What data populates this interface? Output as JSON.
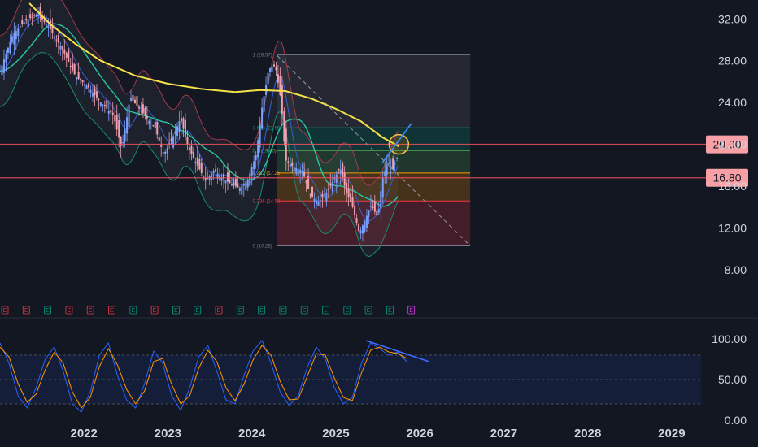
{
  "chart_data": [
    {
      "type": "candlestick",
      "panel": "price",
      "y_ticks": [
        "32.00",
        "28.00",
        "24.00",
        "20.00",
        "16.00",
        "12.00",
        "8.00"
      ],
      "y_tick_values": [
        32,
        28,
        24,
        20,
        16,
        12,
        8
      ],
      "x_ticks": [
        "2022",
        "2023",
        "2024",
        "2025",
        "2026",
        "2027",
        "2028",
        "2029"
      ],
      "ylim": [
        5.5,
        33.5
      ],
      "xlim": [
        2021.0,
        2029.35
      ],
      "price_lines": [
        {
          "label": "20.00",
          "value": 20.0,
          "color": "#f7525f"
        },
        {
          "label": "16.80",
          "value": 16.8,
          "color": "#f7525f"
        }
      ],
      "fib_levels": [
        {
          "label": "1 (28.57)",
          "value": 28.57,
          "color": "#787b86"
        },
        {
          "label": "0.618 (21.58)",
          "value": 21.58,
          "color": "#089981"
        },
        {
          "label": "0.5 (19.40)",
          "value": 19.4,
          "color": "#4caf50"
        },
        {
          "label": "0.382 (17.25)",
          "value": 17.25,
          "color": "#ff9800"
        },
        {
          "label": "0.236 (14.58)",
          "value": 14.58,
          "color": "#f23645"
        },
        {
          "label": "0 (10.28)",
          "value": 10.28,
          "color": "#787b86"
        }
      ],
      "fib_range_x": [
        2024.3,
        2026.6
      ],
      "closes": [
        {
          "t": 2021.0,
          "v": 27.0
        },
        {
          "t": 2021.15,
          "v": 30.5
        },
        {
          "t": 2021.3,
          "v": 31.8
        },
        {
          "t": 2021.45,
          "v": 32.5
        },
        {
          "t": 2021.6,
          "v": 31.0
        },
        {
          "t": 2021.75,
          "v": 29.0
        },
        {
          "t": 2021.9,
          "v": 26.5
        },
        {
          "t": 2022.05,
          "v": 25.5
        },
        {
          "t": 2022.2,
          "v": 24.0
        },
        {
          "t": 2022.35,
          "v": 22.8
        },
        {
          "t": 2022.45,
          "v": 19.5
        },
        {
          "t": 2022.55,
          "v": 24.5
        },
        {
          "t": 2022.65,
          "v": 23.5
        },
        {
          "t": 2022.75,
          "v": 22.5
        },
        {
          "t": 2022.85,
          "v": 21.5
        },
        {
          "t": 2022.95,
          "v": 19.0
        },
        {
          "t": 2023.05,
          "v": 20.5
        },
        {
          "t": 2023.15,
          "v": 22.5
        },
        {
          "t": 2023.25,
          "v": 19.5
        },
        {
          "t": 2023.35,
          "v": 18.0
        },
        {
          "t": 2023.45,
          "v": 16.5
        },
        {
          "t": 2023.55,
          "v": 17.5
        },
        {
          "t": 2023.65,
          "v": 16.8
        },
        {
          "t": 2023.75,
          "v": 16.2
        },
        {
          "t": 2023.85,
          "v": 15.8
        },
        {
          "t": 2023.95,
          "v": 16.6
        },
        {
          "t": 2024.05,
          "v": 19.0
        },
        {
          "t": 2024.12,
          "v": 23.5
        },
        {
          "t": 2024.2,
          "v": 27.2
        },
        {
          "t": 2024.28,
          "v": 27.5
        },
        {
          "t": 2024.35,
          "v": 24.0
        },
        {
          "t": 2024.4,
          "v": 18.5
        },
        {
          "t": 2024.5,
          "v": 17.8
        },
        {
          "t": 2024.6,
          "v": 17.5
        },
        {
          "t": 2024.7,
          "v": 15.0
        },
        {
          "t": 2024.8,
          "v": 14.5
        },
        {
          "t": 2024.9,
          "v": 15.5
        },
        {
          "t": 2025.0,
          "v": 17.0
        },
        {
          "t": 2025.05,
          "v": 17.8
        },
        {
          "t": 2025.12,
          "v": 15.5
        },
        {
          "t": 2025.2,
          "v": 14.0
        },
        {
          "t": 2025.28,
          "v": 11.5
        },
        {
          "t": 2025.35,
          "v": 12.8
        },
        {
          "t": 2025.42,
          "v": 14.2
        },
        {
          "t": 2025.5,
          "v": 13.0
        },
        {
          "t": 2025.55,
          "v": 16.5
        },
        {
          "t": 2025.62,
          "v": 18.3
        },
        {
          "t": 2025.68,
          "v": 17.6
        },
        {
          "t": 2025.75,
          "v": 19.2
        }
      ],
      "sma_yellow": [
        {
          "t": 2021.35,
          "v": 33.5
        },
        {
          "t": 2021.6,
          "v": 31.5
        },
        {
          "t": 2021.9,
          "v": 29.6
        },
        {
          "t": 2022.2,
          "v": 28.0
        },
        {
          "t": 2022.6,
          "v": 26.6
        },
        {
          "t": 2023.0,
          "v": 25.8
        },
        {
          "t": 2023.4,
          "v": 25.3
        },
        {
          "t": 2023.8,
          "v": 25.0
        },
        {
          "t": 2024.1,
          "v": 25.2
        },
        {
          "t": 2024.4,
          "v": 25.1
        },
        {
          "t": 2024.7,
          "v": 24.4
        },
        {
          "t": 2025.0,
          "v": 23.4
        },
        {
          "t": 2025.3,
          "v": 22.2
        },
        {
          "t": 2025.55,
          "v": 20.7
        },
        {
          "t": 2025.75,
          "v": 19.8
        }
      ],
      "annotations": [
        {
          "kind": "resistance_circle",
          "t": 2025.75,
          "v": 20.0
        },
        {
          "kind": "trend_arrow",
          "from": {
            "t": 2025.55,
            "v": 18.2
          },
          "to": {
            "t": 2025.9,
            "v": 22.0
          }
        },
        {
          "kind": "dashed_projection",
          "from": {
            "t": 2024.3,
            "v": 28.5
          },
          "to": {
            "t": 2026.6,
            "v": 10.3
          }
        }
      ],
      "earnings_markers": [
        {
          "label": "E",
          "color": "#f23645"
        },
        {
          "label": "E",
          "color": "#f23645"
        },
        {
          "label": "E",
          "color": "#089981"
        },
        {
          "label": "E",
          "color": "#f23645"
        },
        {
          "label": "E",
          "color": "#f23645"
        },
        {
          "label": "E",
          "color": "#f23645"
        },
        {
          "label": "E",
          "color": "#089981"
        },
        {
          "label": "E",
          "color": "#f23645"
        },
        {
          "label": "E",
          "color": "#089981"
        },
        {
          "label": "E",
          "color": "#089981"
        },
        {
          "label": "E",
          "color": "#f23645"
        },
        {
          "label": "E",
          "color": "#089981"
        },
        {
          "label": "E",
          "color": "#089981"
        },
        {
          "label": "E",
          "color": "#089981"
        },
        {
          "label": "E",
          "color": "#089981"
        },
        {
          "label": "L",
          "color": "#089981"
        },
        {
          "label": "E",
          "color": "#089981"
        },
        {
          "label": "E",
          "color": "#089981"
        },
        {
          "label": "E",
          "color": "#089981"
        },
        {
          "label": "E",
          "color": "#e040fb"
        }
      ]
    },
    {
      "type": "line",
      "panel": "oscillator",
      "y_ticks": [
        "100.00",
        "50.00",
        "0.00"
      ],
      "y_tick_values": [
        100,
        50,
        0
      ],
      "band": [
        20,
        80
      ],
      "ylim": [
        -5,
        115
      ],
      "series": [
        {
          "color": "#2962ff",
          "values": [
            95,
            70,
            30,
            15,
            40,
            75,
            90,
            60,
            20,
            10,
            35,
            80,
            95,
            55,
            25,
            15,
            45,
            85,
            70,
            30,
            12,
            40,
            78,
            92,
            60,
            25,
            20,
            55,
            85,
            98,
            70,
            35,
            18,
            30,
            65,
            90,
            75,
            40,
            20,
            28,
            70,
            95,
            88,
            80,
            84,
            72
          ]
        },
        {
          "color": "#ff9800",
          "values": [
            90,
            78,
            45,
            22,
            32,
            62,
            84,
            70,
            35,
            15,
            28,
            66,
            88,
            68,
            38,
            20,
            36,
            72,
            76,
            44,
            20,
            30,
            64,
            86,
            72,
            40,
            24,
            44,
            74,
            92,
            80,
            48,
            25,
            26,
            54,
            82,
            80,
            52,
            28,
            24,
            58,
            86,
            90,
            84,
            82,
            76
          ]
        }
      ],
      "trend_line": {
        "from": {
          "i": 40.5,
          "v": 98
        },
        "to": {
          "i": 47.5,
          "v": 72
        }
      }
    }
  ]
}
